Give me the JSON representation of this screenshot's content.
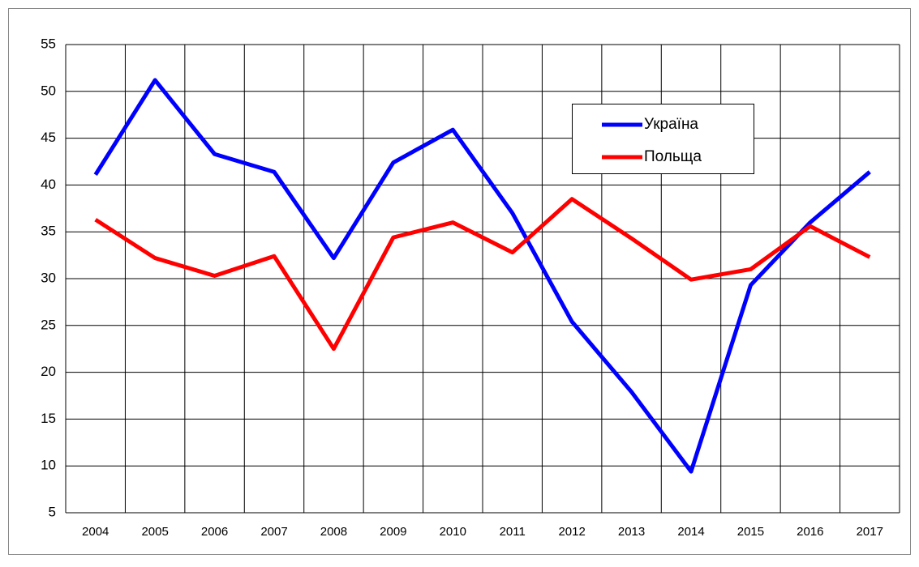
{
  "chart_data": {
    "type": "line",
    "categories": [
      "2004",
      "2005",
      "2006",
      "2007",
      "2008",
      "2009",
      "2010",
      "2011",
      "2012",
      "2013",
      "2014",
      "2015",
      "2016",
      "2017"
    ],
    "series": [
      {
        "name": "Україна",
        "color": "#0000ff",
        "values": [
          41.1,
          51.2,
          43.3,
          41.4,
          32.2,
          42.4,
          45.9,
          37.0,
          25.4,
          17.9,
          9.4,
          29.3,
          36.0,
          41.4
        ]
      },
      {
        "name": "Польща",
        "color": "#ff0000",
        "values": [
          36.3,
          32.2,
          30.3,
          32.4,
          22.5,
          34.4,
          36.0,
          32.8,
          38.5,
          34.3,
          29.9,
          31.0,
          35.6,
          32.3
        ]
      }
    ],
    "ylim": [
      5,
      55
    ],
    "yticks": [
      5,
      10,
      15,
      20,
      25,
      30,
      35,
      40,
      45,
      50,
      55
    ],
    "grid": true
  }
}
